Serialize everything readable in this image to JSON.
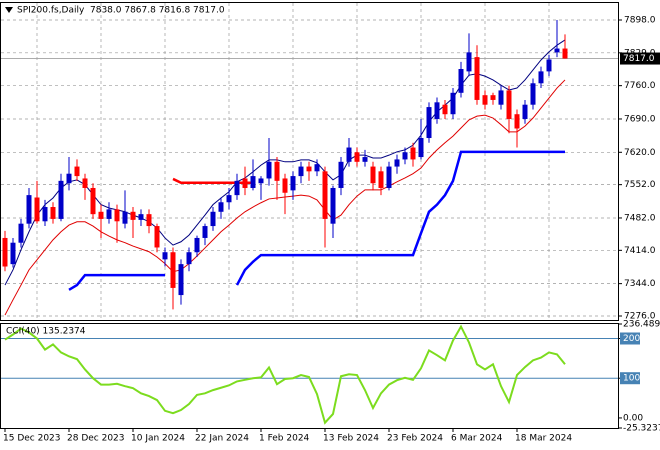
{
  "chart_data": [
    {
      "type": "candlestick",
      "title": "SPI200.fs,Daily",
      "subtitle": "7838.0 7867.8 7816.8 7817.0",
      "categories": [
        "15 Dec 2023",
        null,
        null,
        null,
        null,
        null,
        null,
        null,
        "28 Dec 2023",
        null,
        null,
        null,
        null,
        null,
        null,
        null,
        "10 Jan 2024",
        null,
        null,
        null,
        null,
        null,
        null,
        null,
        "22 Jan 2024",
        null,
        null,
        null,
        null,
        null,
        null,
        null,
        "1 Feb 2024",
        null,
        null,
        null,
        null,
        null,
        null,
        null,
        "13 Feb 2024",
        null,
        null,
        null,
        null,
        null,
        null,
        null,
        "23 Feb 2024",
        null,
        null,
        null,
        null,
        null,
        null,
        null,
        "6 Mar 2024",
        null,
        null,
        null,
        null,
        null,
        null,
        null,
        "18 Mar 2024",
        null,
        null,
        null,
        null,
        null,
        null
      ],
      "open": [
        7440,
        7385,
        7430,
        7470,
        7525,
        7475,
        7505,
        7480,
        7555,
        7590,
        7565,
        7545,
        7495,
        7480,
        7500,
        7470,
        7495,
        7478,
        7490,
        7465,
        7395,
        7410,
        7320,
        7385,
        7410,
        7440,
        7465,
        7495,
        7515,
        7530,
        7565,
        7545,
        7555,
        7565,
        7600,
        7565,
        7540,
        7570,
        7590,
        7580,
        7580,
        7470,
        7545,
        7600,
        7620,
        7600,
        7590,
        7580,
        7545,
        7590,
        7605,
        7630,
        7610,
        7650,
        7690,
        7720,
        7700,
        7745,
        7790,
        7820,
        7740,
        7740,
        7720,
        7750,
        7700,
        7690,
        7720,
        7765,
        7790,
        7830,
        7838
      ],
      "high": [
        7455,
        7440,
        7480,
        7545,
        7560,
        7520,
        7515,
        7575,
        7610,
        7605,
        7575,
        7555,
        7510,
        7515,
        7510,
        7540,
        7505,
        7500,
        7500,
        7470,
        7420,
        7420,
        7395,
        7420,
        7445,
        7470,
        7505,
        7525,
        7545,
        7575,
        7590,
        7605,
        7570,
        7650,
        7610,
        7575,
        7580,
        7600,
        7600,
        7605,
        7590,
        7550,
        7610,
        7650,
        7630,
        7625,
        7600,
        7590,
        7600,
        7615,
        7630,
        7640,
        7690,
        7725,
        7735,
        7730,
        7755,
        7810,
        7870,
        7845,
        7750,
        7745,
        7760,
        7760,
        7710,
        7730,
        7775,
        7800,
        7825,
        7898,
        7867.8
      ],
      "low": [
        7370,
        7378,
        7420,
        7460,
        7470,
        7465,
        7470,
        7475,
        7540,
        7560,
        7520,
        7480,
        7440,
        7470,
        7430,
        7460,
        7440,
        7465,
        7450,
        7410,
        7380,
        7290,
        7300,
        7370,
        7400,
        7425,
        7455,
        7480,
        7500,
        7520,
        7530,
        7540,
        7520,
        7550,
        7520,
        7490,
        7520,
        7555,
        7560,
        7570,
        7420,
        7440,
        7530,
        7590,
        7590,
        7590,
        7540,
        7530,
        7540,
        7575,
        7595,
        7590,
        7605,
        7640,
        7680,
        7690,
        7690,
        7735,
        7780,
        7720,
        7710,
        7720,
        7710,
        7660,
        7630,
        7680,
        7710,
        7755,
        7780,
        7820,
        7816.8
      ],
      "close": [
        7380,
        7430,
        7470,
        7530,
        7475,
        7505,
        7480,
        7560,
        7575,
        7570,
        7545,
        7490,
        7480,
        7500,
        7475,
        7495,
        7478,
        7490,
        7465,
        7420,
        7410,
        7335,
        7385,
        7410,
        7440,
        7465,
        7495,
        7515,
        7530,
        7560,
        7545,
        7570,
        7565,
        7600,
        7560,
        7535,
        7570,
        7590,
        7580,
        7595,
        7480,
        7545,
        7600,
        7630,
        7600,
        7610,
        7555,
        7545,
        7590,
        7605,
        7620,
        7605,
        7650,
        7715,
        7725,
        7700,
        7745,
        7795,
        7830,
        7730,
        7720,
        7730,
        7750,
        7690,
        7670,
        7720,
        7765,
        7790,
        7815,
        7838,
        7817
      ],
      "up_color": "#0000c8",
      "down_color": "#ff0000",
      "bands": [
        {
          "color": "#000080",
          "values": [
            7341,
            7373,
            7415,
            7453,
            7488,
            7510,
            7524,
            7545,
            7558,
            7562,
            7552,
            7531,
            7510,
            7503,
            7499,
            7495,
            7488,
            7482,
            7474,
            7461,
            7440,
            7425,
            7432,
            7446,
            7467,
            7488,
            7510,
            7524,
            7537,
            7558,
            7566,
            7579,
            7593,
            7604,
            7604,
            7600,
            7600,
            7604,
            7604,
            7598,
            7579,
            7562,
            7573,
            7604,
            7614,
            7614,
            7608,
            7608,
            7614,
            7621,
            7625,
            7635,
            7656,
            7684,
            7705,
            7719,
            7734,
            7761,
            7782,
            7785,
            7780,
            7772,
            7761,
            7751,
            7755,
            7772,
            7793,
            7814,
            7831,
            7845,
            7856
          ]
        },
        {
          "color": "#e00000",
          "values": [
            7278,
            7310,
            7341,
            7373,
            7394,
            7415,
            7436,
            7453,
            7467,
            7474,
            7474,
            7465,
            7453,
            7444,
            7436,
            7430,
            7423,
            7417,
            7411,
            7400,
            7386,
            7369,
            7373,
            7386,
            7402,
            7419,
            7436,
            7453,
            7467,
            7482,
            7495,
            7505,
            7514,
            7522,
            7524,
            7526,
            7528,
            7530,
            7528,
            7520,
            7499,
            7478,
            7488,
            7510,
            7528,
            7541,
            7541,
            7541,
            7549,
            7558,
            7566,
            7575,
            7587,
            7608,
            7625,
            7640,
            7654,
            7671,
            7688,
            7696,
            7698,
            7692,
            7678,
            7663,
            7663,
            7675,
            7692,
            7713,
            7734,
            7755,
            7772
          ]
        }
      ],
      "stops": [
        {
          "color": "#0000ff",
          "values": [
            null,
            null,
            null,
            null,
            null,
            null,
            null,
            null,
            7331,
            7341,
            7362,
            7362,
            7362,
            7362,
            7362,
            7362,
            7362,
            7362,
            7362,
            7362,
            7362,
            null,
            null,
            null,
            null,
            null,
            null,
            null,
            null,
            7341,
            7373,
            7390,
            7404,
            7404,
            7404,
            7404,
            7404,
            7404,
            7404,
            7404,
            7404,
            7404,
            7404,
            7404,
            7404,
            7404,
            7404,
            7404,
            7404,
            7404,
            7404,
            7404,
            7450,
            7495,
            7510,
            7530,
            7560,
            7621,
            7621,
            7621,
            7621,
            7621,
            7621,
            7621,
            7621,
            7621,
            7621,
            7621,
            7621,
            7621,
            7621
          ]
        },
        {
          "color": "#ff0000",
          "values": [
            null,
            null,
            null,
            null,
            null,
            null,
            null,
            null,
            null,
            null,
            null,
            null,
            null,
            null,
            null,
            null,
            null,
            null,
            null,
            null,
            null,
            7564,
            7556,
            7556,
            7556,
            7556,
            7556,
            7556,
            7556,
            7556,
            7556,
            7556,
            null,
            null,
            null,
            null,
            null,
            null,
            null,
            null,
            null,
            null,
            null,
            null,
            null,
            null,
            null,
            null,
            null,
            null,
            null,
            null,
            null,
            null,
            null,
            null,
            null,
            null,
            null,
            null,
            null,
            null,
            null,
            null,
            null,
            null,
            null,
            null,
            null,
            null,
            null
          ]
        }
      ],
      "ylim": [
        7267.6,
        7935.8
      ],
      "yticks": [
        {
          "value": 7898,
          "label": "7898.0"
        },
        {
          "value": 7829,
          "label": "7829.0"
        },
        {
          "value": 7760,
          "label": "7760.0"
        },
        {
          "value": 7690,
          "label": "7690.0"
        },
        {
          "value": 7620,
          "label": "7620.0"
        },
        {
          "value": 7552,
          "label": "7552.0"
        },
        {
          "value": 7482,
          "label": "7482.0"
        },
        {
          "value": 7414,
          "label": "7414.0"
        },
        {
          "value": 7344,
          "label": "7344.0"
        },
        {
          "value": 7276,
          "label": "7276.0"
        }
      ],
      "last_price": {
        "value": 7817,
        "label": "7817.0"
      },
      "grid": true
    },
    {
      "type": "line",
      "title": "CCI(40) 135.2374",
      "series": [
        {
          "color": "#7cdc1e",
          "values": [
            197,
            210,
            225,
            215,
            200,
            172,
            185,
            165,
            155,
            148,
            122,
            100,
            84,
            84,
            86,
            80,
            75,
            62,
            55,
            45,
            18,
            12,
            20,
            35,
            58,
            62,
            70,
            76,
            82,
            92,
            96,
            100,
            102,
            127,
            85,
            98,
            100,
            108,
            103,
            60,
            -12,
            10,
            105,
            110,
            108,
            70,
            25,
            62,
            84,
            95,
            101,
            96,
            125,
            170,
            158,
            145,
            195,
            230,
            190,
            135,
            122,
            135,
            80,
            40,
            108,
            128,
            145,
            152,
            165,
            160,
            135.2374
          ]
        }
      ],
      "ylim": [
        -25.3237,
        236.4892
      ],
      "yticks": [
        236.4892,
        200,
        100,
        {
          "value": 0,
          "label": "0.00"
        },
        -25.3237
      ],
      "levels": [
        200,
        100
      ],
      "level_color": "#4682b4"
    }
  ]
}
